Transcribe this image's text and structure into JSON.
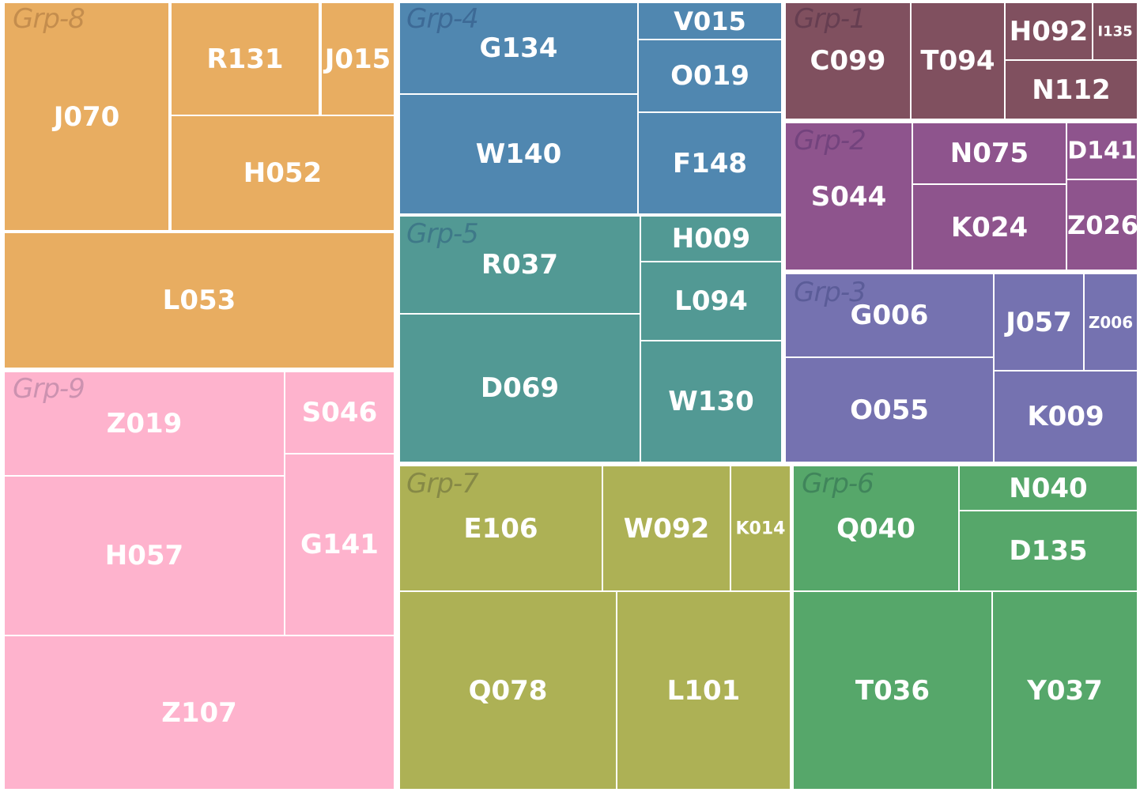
{
  "chart_data": {
    "type": "treemap",
    "groups": [
      {
        "name": "Grp-8",
        "color": "#e8ad61",
        "label_color": "#a8743e",
        "leaves": [
          {
            "name": "J070"
          },
          {
            "name": "R131"
          },
          {
            "name": "J015"
          },
          {
            "name": "H052"
          },
          {
            "name": "L053"
          }
        ]
      },
      {
        "name": "Grp-9",
        "color": "#feb3cd",
        "label_color": "#a5789a",
        "leaves": [
          {
            "name": "Z019"
          },
          {
            "name": "S046"
          },
          {
            "name": "H057"
          },
          {
            "name": "G141"
          },
          {
            "name": "Z107"
          }
        ]
      },
      {
        "name": "Grp-4",
        "color": "#5087b0",
        "label_color": "#2e5482",
        "leaves": [
          {
            "name": "G134"
          },
          {
            "name": "V015"
          },
          {
            "name": "O019"
          },
          {
            "name": "W140"
          },
          {
            "name": "F148"
          }
        ]
      },
      {
        "name": "Grp-5",
        "color": "#529994",
        "label_color": "#2f5f80",
        "leaves": [
          {
            "name": "R037"
          },
          {
            "name": "H009"
          },
          {
            "name": "L094"
          },
          {
            "name": "D069"
          },
          {
            "name": "W130"
          }
        ]
      },
      {
        "name": "Grp-1",
        "color": "#80505f",
        "label_color": "#513047",
        "leaves": [
          {
            "name": "C099"
          },
          {
            "name": "T094"
          },
          {
            "name": "H092"
          },
          {
            "name": "I135"
          },
          {
            "name": "N112"
          }
        ]
      },
      {
        "name": "Grp-2",
        "color": "#8e548d",
        "label_color": "#5d3670",
        "leaves": [
          {
            "name": "S044"
          },
          {
            "name": "N075"
          },
          {
            "name": "D141"
          },
          {
            "name": "K024"
          },
          {
            "name": "Z026"
          }
        ]
      },
      {
        "name": "Grp-3",
        "color": "#7572b0",
        "label_color": "#474b86",
        "leaves": [
          {
            "name": "G006"
          },
          {
            "name": "J057"
          },
          {
            "name": "Z006"
          },
          {
            "name": "O055"
          },
          {
            "name": "K009"
          }
        ]
      },
      {
        "name": "Grp-7",
        "color": "#adb155",
        "label_color": "#686a3a",
        "leaves": [
          {
            "name": "E106"
          },
          {
            "name": "W092"
          },
          {
            "name": "K014"
          },
          {
            "name": "Q078"
          },
          {
            "name": "L101"
          }
        ]
      },
      {
        "name": "Grp-6",
        "color": "#56a76a",
        "label_color": "#2f6a50",
        "leaves": [
          {
            "name": "Q040"
          },
          {
            "name": "N040"
          },
          {
            "name": "D135"
          },
          {
            "name": "T036"
          },
          {
            "name": "Y037"
          }
        ]
      }
    ]
  }
}
